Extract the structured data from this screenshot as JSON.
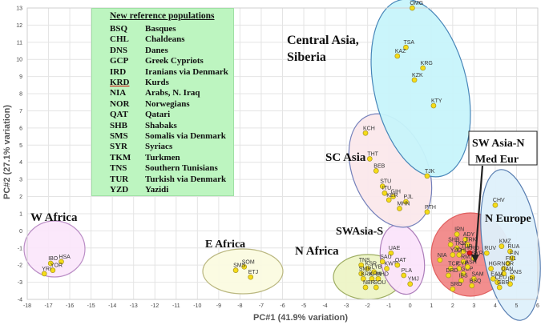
{
  "chart_data": {
    "type": "scatter",
    "xlabel": "PC#1   (41.9% variation)",
    "ylabel": "PC#2   (27.1% variation)",
    "xlim": [
      -18,
      6
    ],
    "ylim": [
      -4,
      13
    ],
    "grid": true,
    "x_ticks": [
      -18,
      -17,
      -16,
      -15,
      -14,
      -13,
      -12,
      -11,
      -10,
      -9,
      -8,
      -7,
      -6,
      -5,
      -4,
      -3,
      -2,
      -1,
      0,
      1,
      2,
      3,
      4,
      5,
      6
    ],
    "y_ticks": [
      -4,
      -3,
      -2,
      -1,
      0,
      1,
      2,
      3,
      4,
      5,
      6,
      7,
      8,
      9,
      10,
      11,
      12,
      13
    ],
    "legend": {
      "title": "New reference populations",
      "entries": [
        {
          "code": "BSQ",
          "name": "Basques"
        },
        {
          "code": "CHL",
          "name": "Chaldeans"
        },
        {
          "code": "DNS",
          "name": "Danes"
        },
        {
          "code": "GCP",
          "name": "Greek Cypriots"
        },
        {
          "code": "IRD",
          "name": "Iranians via Denmark"
        },
        {
          "code": "KRD",
          "name": "Kurds"
        },
        {
          "code": "NIA",
          "name": "Arabs, N. Iraq"
        },
        {
          "code": "NOR",
          "name": "Norwegians"
        },
        {
          "code": "QAT",
          "name": "Qatari"
        },
        {
          "code": "SHB",
          "name": "Shabaks"
        },
        {
          "code": "SMS",
          "name": "Somalis via Denmark"
        },
        {
          "code": "SYR",
          "name": "Syriacs"
        },
        {
          "code": "TKM",
          "name": "Turkmen"
        },
        {
          "code": "TNS",
          "name": "Southern Tunisians"
        },
        {
          "code": "TUR",
          "name": "Turkish via Denmark"
        },
        {
          "code": "YZD",
          "name": "Yazidi"
        }
      ]
    },
    "region_labels": [
      "W Africa",
      "E Africa",
      "N Africa",
      "SWAsia-S",
      "SC Asia",
      "Central Asia,",
      "Siberia",
      "SW Asia-N",
      "Med Eur",
      "N Europe"
    ],
    "points": [
      {
        "label": "IBO",
        "x": -16.9,
        "y": -1.9
      },
      {
        "label": "HSA",
        "x": -16.4,
        "y": -1.8
      },
      {
        "label": "YOR",
        "x": -16.8,
        "y": -2.3
      },
      {
        "label": "YRI",
        "x": -17.2,
        "y": -2.5
      },
      {
        "label": "SOM",
        "x": -7.8,
        "y": -2.1
      },
      {
        "label": "SMS",
        "x": -8.2,
        "y": -2.3
      },
      {
        "label": "ETJ",
        "x": -7.5,
        "y": -2.7
      },
      {
        "label": "TNS",
        "x": -2.3,
        "y": -2.0
      },
      {
        "label": "KSR",
        "x": -2.0,
        "y": -2.2
      },
      {
        "label": "SMR",
        "x": -2.3,
        "y": -2.5
      },
      {
        "label": "LYB",
        "x": -1.7,
        "y": -2.4
      },
      {
        "label": "KRK",
        "x": -2.2,
        "y": -2.8
      },
      {
        "label": "KRN",
        "x": -1.8,
        "y": -2.8
      },
      {
        "label": "MHD",
        "x": -1.5,
        "y": -2.8
      },
      {
        "label": "NBR",
        "x": -2.1,
        "y": -3.3
      },
      {
        "label": "SOU",
        "x": -1.6,
        "y": -3.3
      },
      {
        "label": "UAE",
        "x": -0.9,
        "y": -1.3
      },
      {
        "label": "SAU",
        "x": -1.3,
        "y": -1.8
      },
      {
        "label": "KWT",
        "x": -1.1,
        "y": -2.2
      },
      {
        "label": "QAT",
        "x": -0.6,
        "y": -2.0
      },
      {
        "label": "PLA",
        "x": -0.3,
        "y": -2.6
      },
      {
        "label": "YMJ",
        "x": 0.0,
        "y": -3.1
      },
      {
        "label": "OMG",
        "x": 0.1,
        "y": 13.0
      },
      {
        "label": "TSA",
        "x": -0.2,
        "y": 10.7
      },
      {
        "label": "KAZ",
        "x": -0.6,
        "y": 10.2
      },
      {
        "label": "KRG",
        "x": 0.6,
        "y": 9.5
      },
      {
        "label": "KZK",
        "x": 0.2,
        "y": 8.8
      },
      {
        "label": "KTY",
        "x": 1.1,
        "y": 7.3
      },
      {
        "label": "TJK",
        "x": 0.8,
        "y": 3.2
      },
      {
        "label": "KCH",
        "x": -2.1,
        "y": 5.7
      },
      {
        "label": "THT",
        "x": -1.9,
        "y": 4.2
      },
      {
        "label": "BEB",
        "x": -1.6,
        "y": 3.5
      },
      {
        "label": "STU",
        "x": -1.3,
        "y": 2.6
      },
      {
        "label": "ITU",
        "x": -1.2,
        "y": 2.2
      },
      {
        "label": "GIH",
        "x": -0.8,
        "y": 2.0
      },
      {
        "label": "KER",
        "x": -1.0,
        "y": 1.8
      },
      {
        "label": "PJL",
        "x": -0.2,
        "y": 1.7
      },
      {
        "label": "MHN",
        "x": -0.5,
        "y": 1.3
      },
      {
        "label": "PTH",
        "x": 0.8,
        "y": 1.1
      },
      {
        "label": "IRN",
        "x": 2.2,
        "y": -0.2
      },
      {
        "label": "ADY",
        "x": 2.6,
        "y": -0.5
      },
      {
        "label": "SHB",
        "x": 1.9,
        "y": -0.8
      },
      {
        "label": "TRK",
        "x": 2.7,
        "y": -0.8
      },
      {
        "label": "TKM",
        "x": 2.2,
        "y": -1.0
      },
      {
        "label": "TUR",
        "x": 2.5,
        "y": -1.2
      },
      {
        "label": "YZD",
        "x": 2.0,
        "y": -1.4
      },
      {
        "label": "CHL",
        "x": 2.3,
        "y": -1.4
      },
      {
        "label": "KRD",
        "x": 2.8,
        "y": -1.3
      },
      {
        "label": "NIA",
        "x": 1.4,
        "y": -1.7
      },
      {
        "label": "RMJ",
        "x": 2.5,
        "y": -1.8
      },
      {
        "label": "SYR",
        "x": 3.0,
        "y": -1.6
      },
      {
        "label": "TCP",
        "x": 1.9,
        "y": -2.2
      },
      {
        "label": "CYP",
        "x": 2.3,
        "y": -2.2
      },
      {
        "label": "DRD",
        "x": 1.8,
        "y": -2.6
      },
      {
        "label": "GCP",
        "x": 2.5,
        "y": -2.5
      },
      {
        "label": "IBS",
        "x": 2.4,
        "y": -2.9
      },
      {
        "label": "SAM",
        "x": 3.0,
        "y": -2.8
      },
      {
        "label": "BSQ",
        "x": 2.9,
        "y": -3.2
      },
      {
        "label": "SRD",
        "x": 2.0,
        "y": -3.4
      },
      {
        "label": "ASH",
        "x": 2.7,
        "y": -2.1
      },
      {
        "label": "RUV",
        "x": 3.6,
        "y": -1.3
      },
      {
        "label": "KMZ",
        "x": 4.3,
        "y": -0.9
      },
      {
        "label": "RUA",
        "x": 4.7,
        "y": -1.2
      },
      {
        "label": "FIN",
        "x": 4.8,
        "y": -1.6
      },
      {
        "label": "FN1",
        "x": 4.6,
        "y": -1.9
      },
      {
        "label": "HGR",
        "x": 3.8,
        "y": -2.2
      },
      {
        "label": "NOR",
        "x": 4.4,
        "y": -2.2
      },
      {
        "label": "DAN",
        "x": 4.4,
        "y": -2.5
      },
      {
        "label": "EAM",
        "x": 3.9,
        "y": -2.8
      },
      {
        "label": "DNS",
        "x": 4.8,
        "y": -2.7
      },
      {
        "label": "CEU",
        "x": 4.1,
        "y": -3.0
      },
      {
        "label": "IRI",
        "x": 4.7,
        "y": -3.1
      },
      {
        "label": "GBR",
        "x": 4.2,
        "y": -3.3
      },
      {
        "label": "CHV",
        "x": 4.0,
        "y": 1.5
      }
    ]
  }
}
